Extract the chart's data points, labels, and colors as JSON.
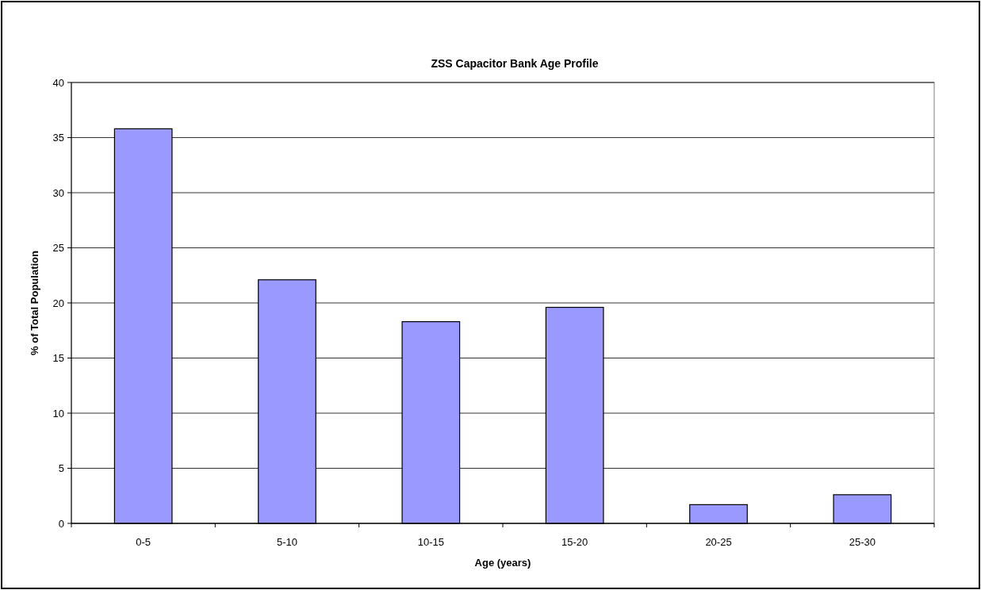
{
  "chart_data": {
    "type": "bar",
    "title": "ZSS Capacitor Bank Age Profile",
    "xlabel": "Age (years)",
    "ylabel": "% of Total Population",
    "categories": [
      "0-5",
      "5-10",
      "10-15",
      "15-20",
      "20-25",
      "25-30"
    ],
    "values": [
      35.8,
      22.1,
      18.3,
      19.6,
      1.7,
      2.6
    ],
    "color": "#9999ff",
    "ylim": [
      0,
      40
    ],
    "yticks": [
      0,
      5,
      10,
      15,
      20,
      25,
      30,
      35,
      40
    ],
    "grid": "y"
  }
}
